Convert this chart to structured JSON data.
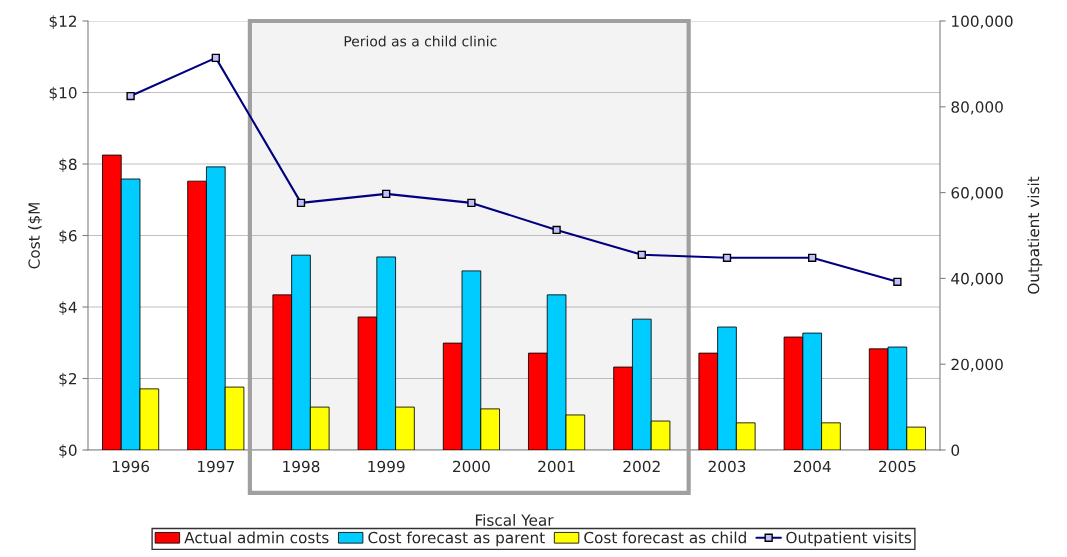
{
  "chart_data": {
    "type": "bar",
    "xlabel": "Fiscal Year",
    "ylabel": "Cost ($M",
    "y2label": "Outpatient visit",
    "categories": [
      "1996",
      "1997",
      "1998",
      "1999",
      "2000",
      "2001",
      "2002",
      "2003",
      "2004",
      "2005"
    ],
    "series": [
      {
        "name": "Actual admin costs",
        "color": "#ff0000",
        "values": [
          8.25,
          7.52,
          4.34,
          3.72,
          2.99,
          2.71,
          2.32,
          2.71,
          3.16,
          2.83
        ]
      },
      {
        "name": "Cost forecast as parent",
        "color": "#00ccff",
        "values": [
          7.58,
          7.92,
          5.45,
          5.4,
          5.01,
          4.34,
          3.66,
          3.44,
          3.27,
          2.88
        ]
      },
      {
        "name": "Cost forecast as child",
        "color": "#ffff00",
        "values": [
          1.71,
          1.76,
          1.2,
          1.2,
          1.15,
          0.98,
          0.81,
          0.76,
          0.76,
          0.64
        ]
      },
      {
        "name": "Outpatient visits",
        "type": "line",
        "axis": "y2",
        "color": "#000080",
        "marker": "square",
        "values": [
          82500,
          91400,
          57600,
          59700,
          57600,
          51300,
          45500,
          44800,
          44800,
          39200
        ]
      }
    ],
    "ylim": [
      0,
      12
    ],
    "yticks": [
      {
        "value": 0,
        "label": "$0"
      },
      {
        "value": 2,
        "label": "$2"
      },
      {
        "value": 4,
        "label": "$4"
      },
      {
        "value": 6,
        "label": "$6"
      },
      {
        "value": 8,
        "label": "$8"
      },
      {
        "value": 10,
        "label": "$10"
      },
      {
        "value": 12,
        "label": "$12"
      }
    ],
    "y2lim": [
      0,
      100000
    ],
    "y2ticks": [
      0,
      {
        "value": 20000,
        "label": "20,000"
      },
      {
        "value": 40000,
        "label": "40,000"
      },
      {
        "value": 60000,
        "label": "60,000"
      },
      {
        "value": 80000,
        "label": "80,000"
      },
      {
        "value": 100000,
        "label": "100,000"
      }
    ],
    "bands": [
      {
        "axis": "x",
        "from": "1998",
        "to": "2002",
        "label": "Period as a child clinic",
        "color": "#a0a0a0"
      }
    ],
    "grid": "y",
    "legend": "bottom"
  }
}
